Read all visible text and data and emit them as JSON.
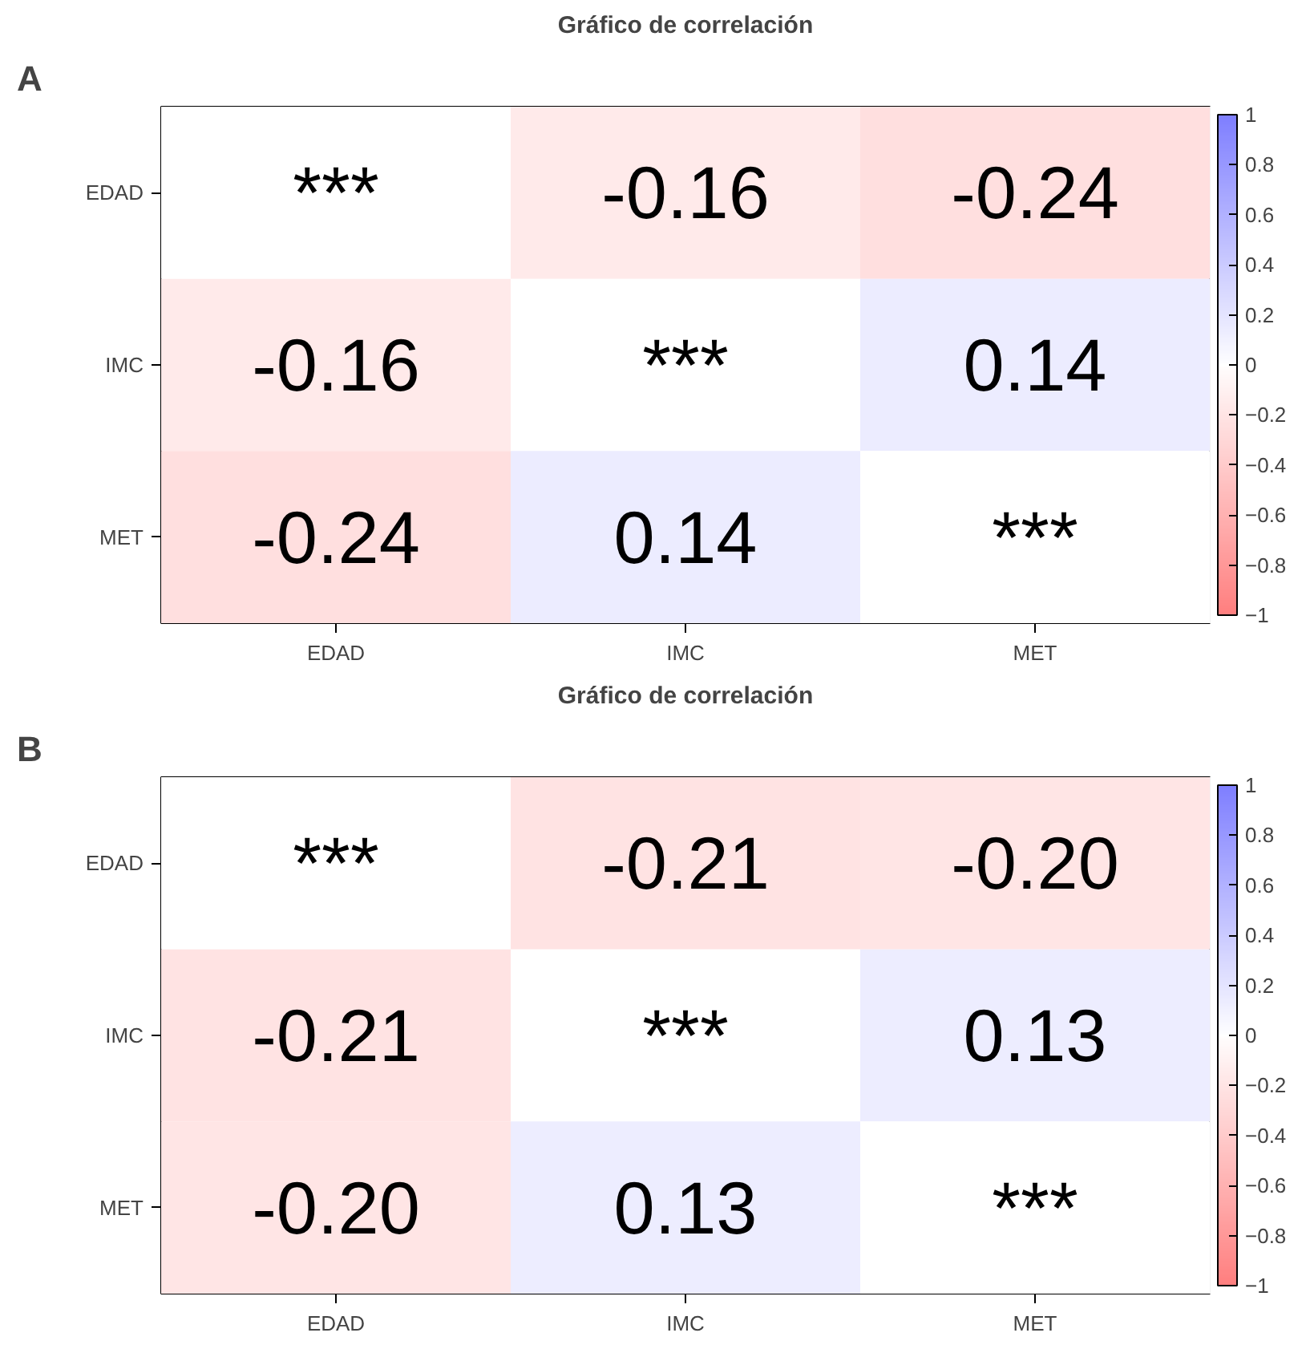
{
  "chart_data": [
    {
      "type": "heatmap",
      "title": "Gráfico de correlación",
      "annotations": [
        "A"
      ],
      "categories": [
        "EDAD",
        "IMC",
        "MET"
      ],
      "y_categories": [
        "EDAD",
        "IMC",
        "MET"
      ],
      "cells": [
        [
          null,
          -0.16,
          -0.24
        ],
        [
          -0.16,
          null,
          0.14
        ],
        [
          -0.24,
          0.14,
          null
        ]
      ],
      "cell_labels": [
        [
          "***",
          "-0.16",
          "-0.24"
        ],
        [
          "-0.16",
          "***",
          "0.14"
        ],
        [
          "-0.24",
          "0.14",
          "***"
        ]
      ],
      "clim": [
        -1,
        1
      ],
      "cticks": [
        -1,
        -0.8,
        -0.6,
        -0.4,
        -0.2,
        0,
        0.2,
        0.4,
        0.6,
        0.8,
        1
      ]
    },
    {
      "type": "heatmap",
      "title": "Gráfico de correlación",
      "annotations": [
        "B"
      ],
      "categories": [
        "EDAD",
        "IMC",
        "MET"
      ],
      "y_categories": [
        "EDAD",
        "IMC",
        "MET"
      ],
      "cells": [
        [
          null,
          -0.21,
          -0.2
        ],
        [
          -0.21,
          null,
          0.13
        ],
        [
          -0.2,
          0.13,
          null
        ]
      ],
      "cell_labels": [
        [
          "***",
          "-0.21",
          "-0.20"
        ],
        [
          "-0.21",
          "***",
          "0.13"
        ],
        [
          "-0.20",
          "0.13",
          "***"
        ]
      ],
      "clim": [
        -1,
        1
      ],
      "cticks": [
        -1,
        -0.8,
        -0.6,
        -0.4,
        -0.2,
        0,
        0.2,
        0.4,
        0.6,
        0.8,
        1
      ]
    }
  ]
}
